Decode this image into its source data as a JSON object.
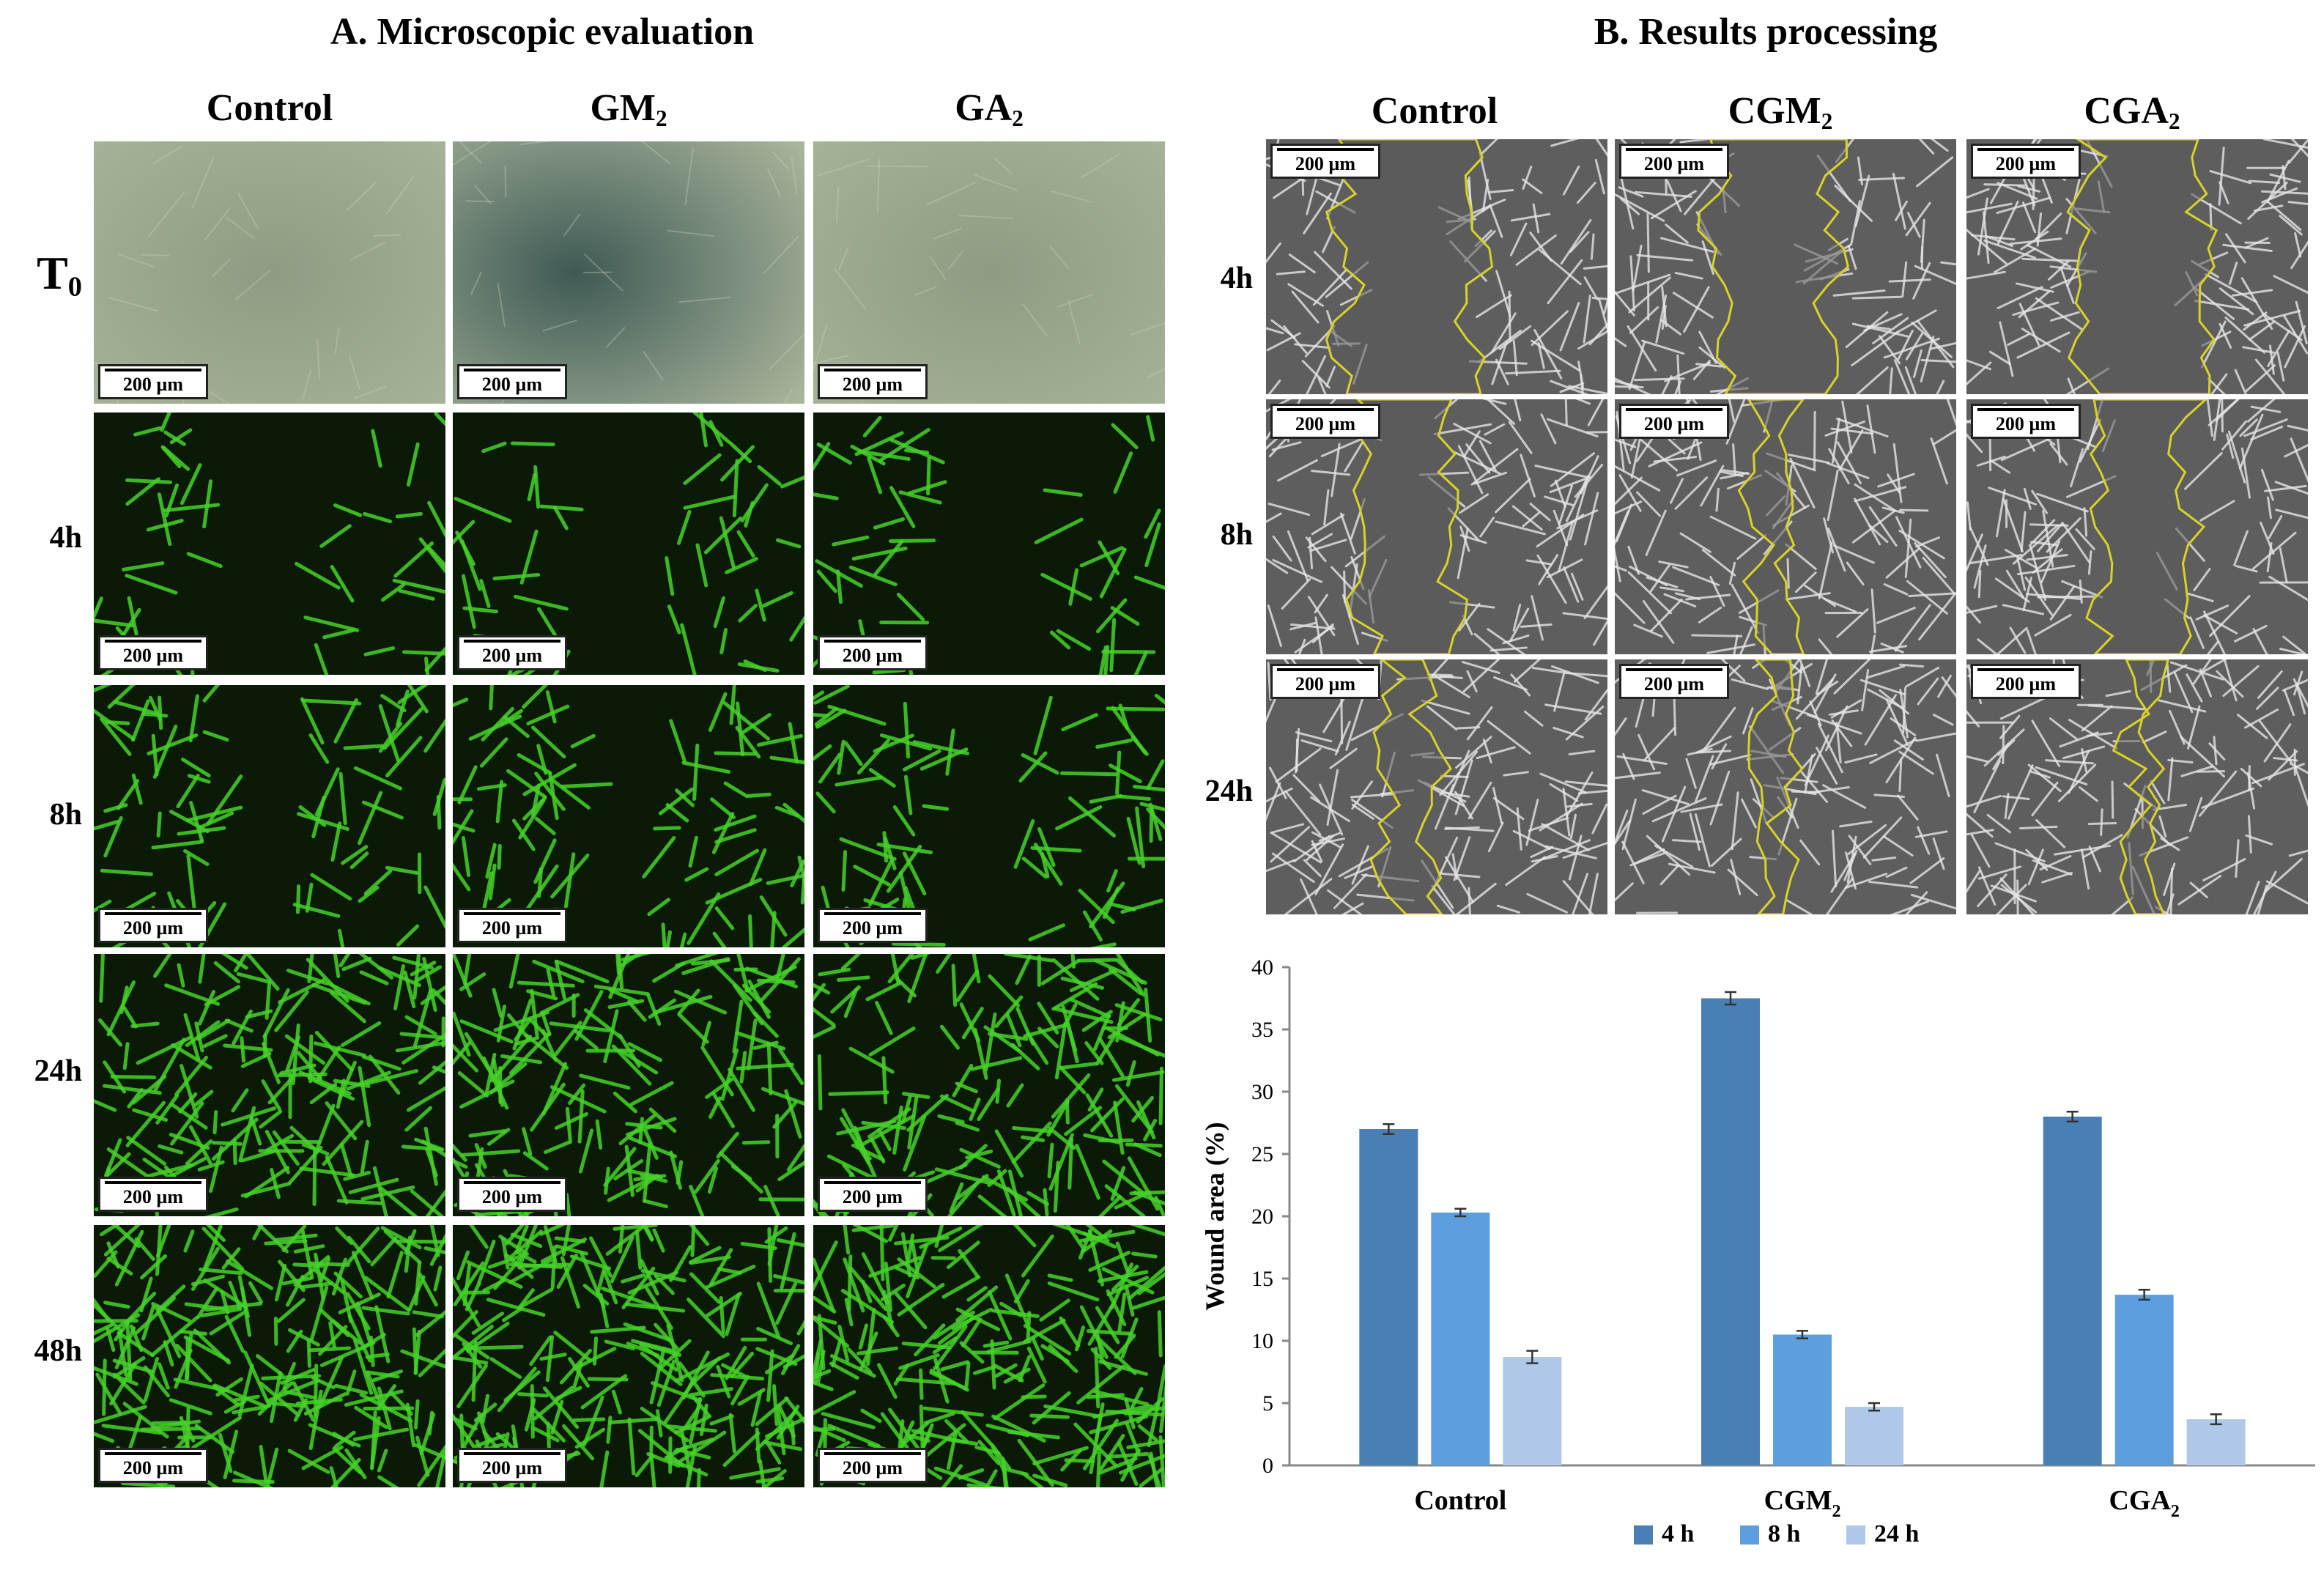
{
  "panelA": {
    "title": "A. Microscopic evaluation",
    "columns": [
      {
        "main": "Control",
        "sub": ""
      },
      {
        "main": "GM",
        "sub": "2"
      },
      {
        "main": "GA",
        "sub": "2"
      }
    ],
    "rows": [
      {
        "main": "T",
        "sub": "0"
      },
      {
        "main": "4h",
        "sub": ""
      },
      {
        "main": "8h",
        "sub": ""
      },
      {
        "main": "24h",
        "sub": ""
      },
      {
        "main": "48h",
        "sub": ""
      }
    ],
    "scale_label": "200 µm"
  },
  "panelB": {
    "title": "B. Results processing",
    "columns": [
      {
        "main": "Control",
        "sub": ""
      },
      {
        "main": "CGM",
        "sub": "2"
      },
      {
        "main": "CGA",
        "sub": "2"
      }
    ],
    "rows": [
      {
        "main": "4h",
        "sub": ""
      },
      {
        "main": "8h",
        "sub": ""
      },
      {
        "main": "24h",
        "sub": ""
      }
    ],
    "scale_label": "200 µm"
  },
  "colors": {
    "bright_field": "#a9b59b",
    "fluor_bg": "#0b1a06",
    "fluor_cell": "#46d22a",
    "processed_bg": "#5e5e5e",
    "outline": "#d8d22a"
  },
  "chart_data": {
    "type": "bar",
    "categories": [
      {
        "main": "Control",
        "sub": ""
      },
      {
        "main": "CGM",
        "sub": "2"
      },
      {
        "main": "CGA",
        "sub": "2"
      }
    ],
    "series": [
      {
        "name": "4 h",
        "color": "#4a7fb5",
        "values": [
          27.0,
          37.5,
          28.0
        ],
        "errors": [
          0.4,
          0.5,
          0.4
        ]
      },
      {
        "name": "8 h",
        "color": "#5c9fdc",
        "values": [
          20.3,
          10.5,
          13.7
        ],
        "errors": [
          0.3,
          0.3,
          0.4
        ]
      },
      {
        "name": "24 h",
        "color": "#b0c8e8",
        "values": [
          8.7,
          4.7,
          3.7
        ],
        "errors": [
          0.5,
          0.3,
          0.4
        ]
      }
    ],
    "ylabel": "Wound area (%)",
    "ylim": [
      0,
      40
    ],
    "yticks": [
      "0",
      "5",
      "10",
      "15",
      "20",
      "25",
      "30",
      "35",
      "40"
    ],
    "grid": false,
    "legend": "bottom"
  }
}
